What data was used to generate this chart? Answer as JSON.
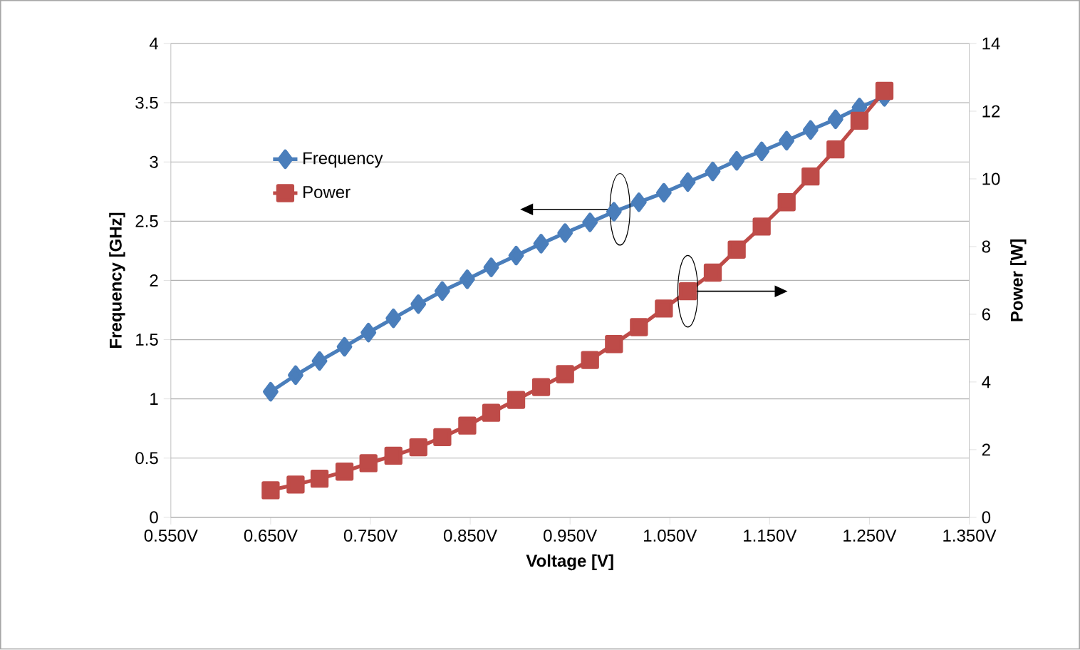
{
  "chart_data": {
    "type": "line",
    "xlabel": "Voltage [V]",
    "ylabel": "Frequency [GHz]",
    "y2label": "Power [W]",
    "x": [
      0.65,
      0.675,
      0.699,
      0.724,
      0.748,
      0.773,
      0.798,
      0.822,
      0.847,
      0.871,
      0.896,
      0.921,
      0.945,
      0.97,
      0.994,
      1.019,
      1.044,
      1.068,
      1.093,
      1.117,
      1.142,
      1.167,
      1.191,
      1.216,
      1.24,
      1.265
    ],
    "series": [
      {
        "name": "Frequency",
        "color": "#4a7ebb",
        "marker": "diamond",
        "values": [
          1.06,
          1.2,
          1.32,
          1.44,
          1.56,
          1.68,
          1.8,
          1.91,
          2.01,
          2.11,
          2.21,
          2.31,
          2.4,
          2.49,
          2.58,
          2.66,
          2.74,
          2.83,
          2.92,
          3.01,
          3.09,
          3.18,
          3.27,
          3.36,
          3.46,
          3.55
        ]
      },
      {
        "name": "Power",
        "color": "#be4b48",
        "marker": "square",
        "axis": "y2",
        "values": [
          0.8,
          0.97,
          1.14,
          1.35,
          1.6,
          1.82,
          2.07,
          2.37,
          2.71,
          3.09,
          3.47,
          3.85,
          4.23,
          4.65,
          5.12,
          5.62,
          6.17,
          6.68,
          7.23,
          7.91,
          8.59,
          9.31,
          10.07,
          10.87,
          11.72,
          12.6
        ]
      }
    ],
    "xlim": [
      0.55,
      1.35
    ],
    "xticks": [
      {
        "value": 0.55,
        "label": "0.550V"
      },
      {
        "value": 0.65,
        "label": "0.650V"
      },
      {
        "value": 0.75,
        "label": "0.750V"
      },
      {
        "value": 0.85,
        "label": "0.850V"
      },
      {
        "value": 0.95,
        "label": "0.950V"
      },
      {
        "value": 1.05,
        "label": "1.050V"
      },
      {
        "value": 1.15,
        "label": "1.150V"
      },
      {
        "value": 1.25,
        "label": "1.250V"
      },
      {
        "value": 1.35,
        "label": "1.350V"
      }
    ],
    "ylim": [
      0,
      4
    ],
    "yticks": [
      0,
      0.5,
      1,
      1.5,
      2,
      2.5,
      3,
      3.5,
      4
    ],
    "y2lim": [
      0,
      14
    ],
    "y2ticks": [
      0,
      2,
      4,
      6,
      8,
      10,
      12,
      14
    ],
    "grid": "y",
    "legend": "left"
  }
}
